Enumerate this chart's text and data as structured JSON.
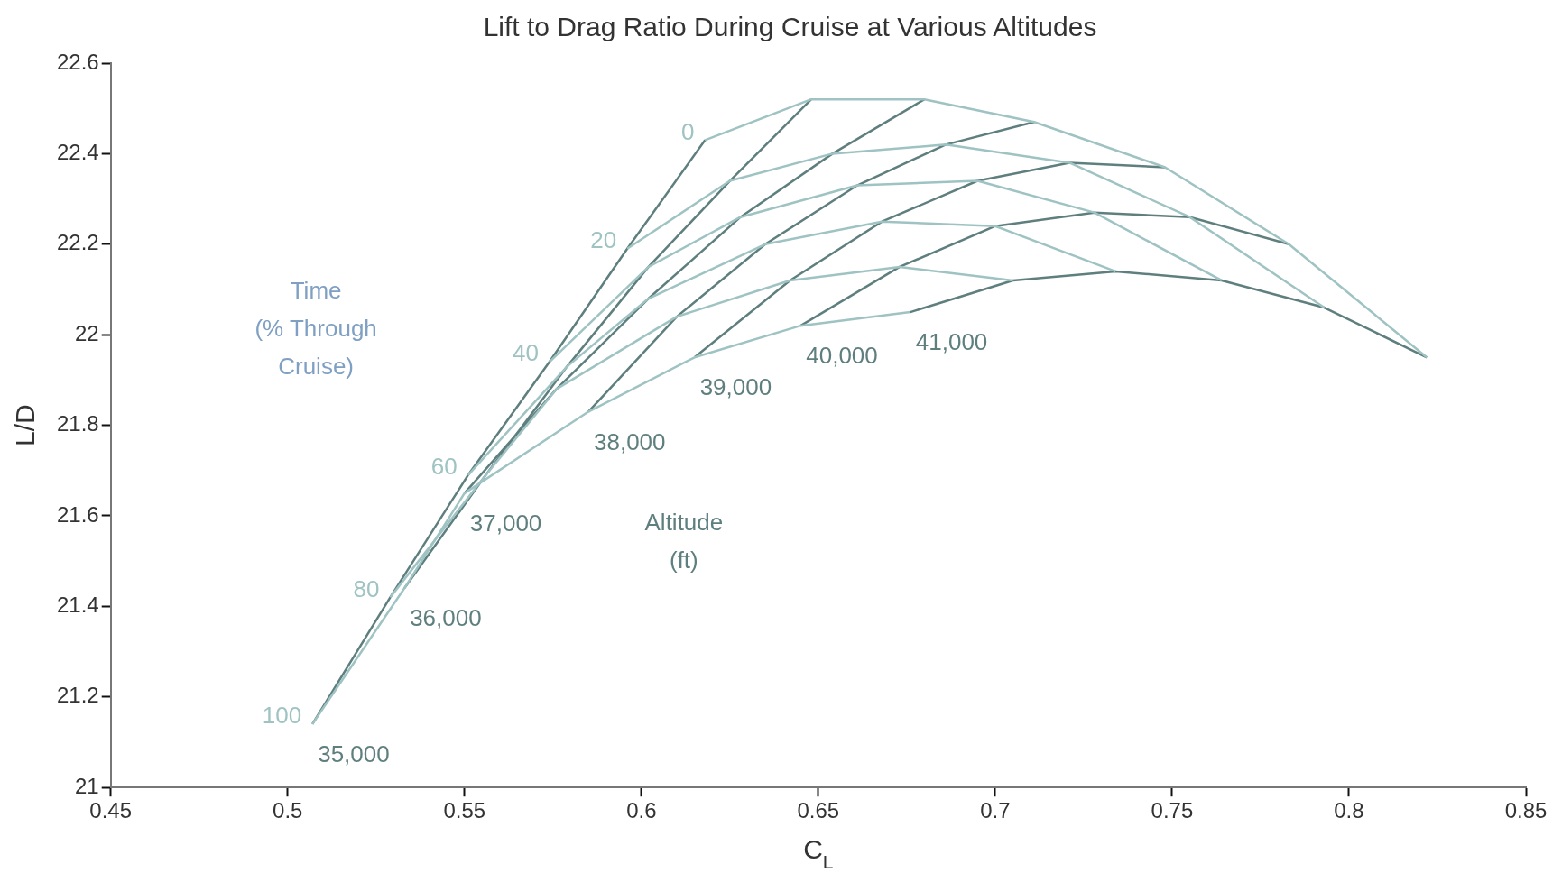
{
  "chart_data": {
    "type": "line",
    "title": "Lift to Drag Ratio During Cruise at Various Altitudes",
    "xlabel": "C$_{L}$",
    "ylabel": "L/D",
    "xlim": [
      0.45,
      0.85
    ],
    "xticks": [
      0.45,
      0.5,
      0.55,
      0.6,
      0.65,
      0.7,
      0.75,
      0.8,
      0.85
    ],
    "ylim": [
      21,
      22.6
    ],
    "yticks": [
      21,
      21.2,
      21.4,
      21.6,
      21.8,
      22,
      22.2,
      22.4,
      22.6
    ],
    "grid": false,
    "legend": false,
    "marker": "none",
    "line_style": "solid",
    "annotations": [
      "Time\n(% Through\nCruise)",
      "Altitude\n(ft)"
    ],
    "series": [
      {
        "name": "0",
        "color": "#9fc3c3",
        "x": [
          0.618,
          0.648,
          0.68,
          0.711,
          0.748,
          0.783,
          0.822
        ],
        "values": [
          22.43,
          22.52,
          22.52,
          22.47,
          22.37,
          22.2,
          21.95
        ]
      },
      {
        "name": "20",
        "color": "#9fc3c3",
        "x": [
          0.596,
          0.625,
          0.654,
          0.686,
          0.721,
          0.755,
          0.793
        ],
        "values": [
          22.19,
          22.34,
          22.4,
          22.42,
          22.38,
          22.26,
          22.06
        ]
      },
      {
        "name": "40",
        "color": "#9fc3c3",
        "x": [
          0.574,
          0.602,
          0.628,
          0.661,
          0.695,
          0.728,
          0.764
        ],
        "values": [
          21.94,
          22.15,
          22.26,
          22.33,
          22.34,
          22.27,
          22.12
        ]
      },
      {
        "name": "60",
        "color": "#9fc3c3",
        "x": [
          0.551,
          0.579,
          0.602,
          0.635,
          0.668,
          0.7,
          0.734
        ],
        "values": [
          21.69,
          21.93,
          22.08,
          22.2,
          22.25,
          22.24,
          22.14
        ]
      },
      {
        "name": "80",
        "color": "#9fc3c3",
        "x": [
          0.529,
          0.556,
          0.576,
          0.61,
          0.642,
          0.673,
          0.705
        ],
        "values": [
          21.42,
          21.69,
          21.88,
          22.04,
          22.12,
          22.15,
          22.12
        ]
      },
      {
        "name": "100",
        "color": "#9fc3c3",
        "x": [
          0.507,
          0.533,
          0.55,
          0.585,
          0.615,
          0.645,
          0.676
        ],
        "values": [
          21.14,
          21.44,
          21.65,
          21.83,
          21.95,
          22.02,
          22.05
        ]
      },
      {
        "name": "35,000",
        "color": "#5f7f7f",
        "x": [
          0.507,
          0.529,
          0.551,
          0.574,
          0.596,
          0.618
        ],
        "values": [
          21.14,
          21.42,
          21.69,
          21.94,
          22.19,
          22.43
        ]
      },
      {
        "name": "36,000",
        "color": "#5f7f7f",
        "x": [
          0.533,
          0.556,
          0.579,
          0.602,
          0.625,
          0.648
        ],
        "values": [
          21.44,
          21.69,
          21.93,
          22.15,
          22.34,
          22.52
        ]
      },
      {
        "name": "37,000",
        "color": "#5f7f7f",
        "x": [
          0.55,
          0.576,
          0.602,
          0.628,
          0.654,
          0.68
        ],
        "values": [
          21.65,
          21.88,
          22.08,
          22.26,
          22.4,
          22.52
        ]
      },
      {
        "name": "38,000",
        "color": "#5f7f7f",
        "x": [
          0.585,
          0.61,
          0.635,
          0.661,
          0.686,
          0.711
        ],
        "values": [
          21.83,
          22.04,
          22.2,
          22.33,
          22.42,
          22.47
        ]
      },
      {
        "name": "39,000",
        "color": "#5f7f7f",
        "x": [
          0.615,
          0.642,
          0.668,
          0.695,
          0.721,
          0.748
        ],
        "values": [
          21.95,
          22.12,
          22.25,
          22.34,
          22.38,
          22.37
        ]
      },
      {
        "name": "40,000",
        "color": "#5f7f7f",
        "x": [
          0.645,
          0.673,
          0.7,
          0.728,
          0.755,
          0.783
        ],
        "values": [
          22.02,
          22.15,
          22.24,
          22.27,
          22.26,
          22.2
        ]
      },
      {
        "name": "41,000",
        "color": "#5f7f7f",
        "x": [
          0.676,
          0.705,
          0.734,
          0.764,
          0.793,
          0.822
        ],
        "values": [
          22.05,
          22.12,
          22.14,
          22.12,
          22.06,
          21.95
        ]
      }
    ]
  }
}
